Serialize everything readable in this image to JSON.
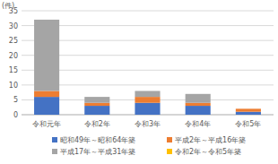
{
  "chart_data": {
    "type": "bar",
    "stacked": true,
    "grid": true,
    "legend": "bottom",
    "y_label": "(件)",
    "categories": [
      "令和元年",
      "令和2年",
      "令和3年",
      "令和4年",
      "令和5年"
    ],
    "series": [
      {
        "name": "昭和49年～昭和64年築",
        "color": "#4472c4",
        "values": [
          6,
          3,
          4,
          3,
          1
        ]
      },
      {
        "name": "平成2年～平成16年築",
        "color": "#ed7d31",
        "values": [
          2,
          1,
          2,
          1,
          1
        ]
      },
      {
        "name": "平成17年～平成31年築",
        "color": "#a5a5a5",
        "values": [
          24,
          2,
          2,
          3,
          0
        ]
      },
      {
        "name": "令和2年～令和5年築",
        "color": "#ffc000",
        "values": [
          0,
          0,
          0,
          0,
          0
        ]
      }
    ],
    "ylim": [
      0,
      35
    ],
    "yticks": [
      0,
      5,
      10,
      15,
      20,
      25,
      30,
      35
    ]
  }
}
